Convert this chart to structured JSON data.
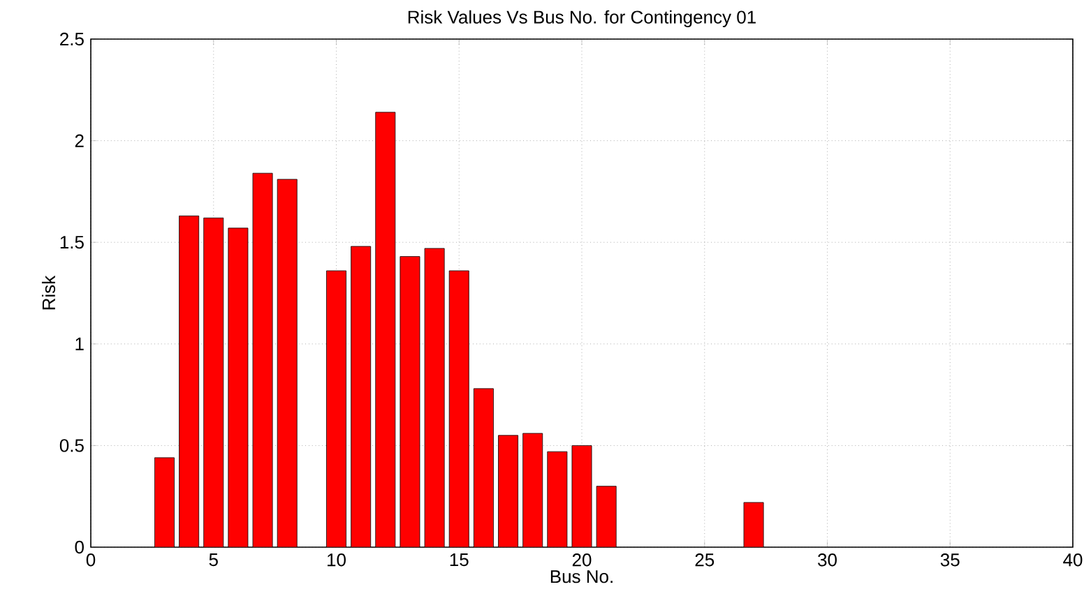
{
  "chart_data": {
    "type": "bar",
    "title": "Risk Values Vs Bus No. for Contingency 01",
    "xlabel": "Bus No.",
    "ylabel": "Risk",
    "x": [
      3,
      4,
      5,
      6,
      7,
      8,
      10,
      11,
      12,
      13,
      14,
      15,
      16,
      17,
      18,
      19,
      20,
      21,
      27
    ],
    "values": [
      0.44,
      1.63,
      1.62,
      1.57,
      1.84,
      1.81,
      1.36,
      1.48,
      2.14,
      1.43,
      1.47,
      1.36,
      0.78,
      0.55,
      0.56,
      0.47,
      0.5,
      0.3,
      0.22
    ],
    "color": "#ff0000",
    "xlim": [
      0,
      40
    ],
    "xticks": [
      0,
      5,
      10,
      15,
      20,
      25,
      30,
      35,
      40
    ],
    "ylim": [
      0,
      2.5
    ],
    "yticks": [
      0,
      0.5,
      1,
      1.5,
      2,
      2.5
    ],
    "grid": true
  }
}
